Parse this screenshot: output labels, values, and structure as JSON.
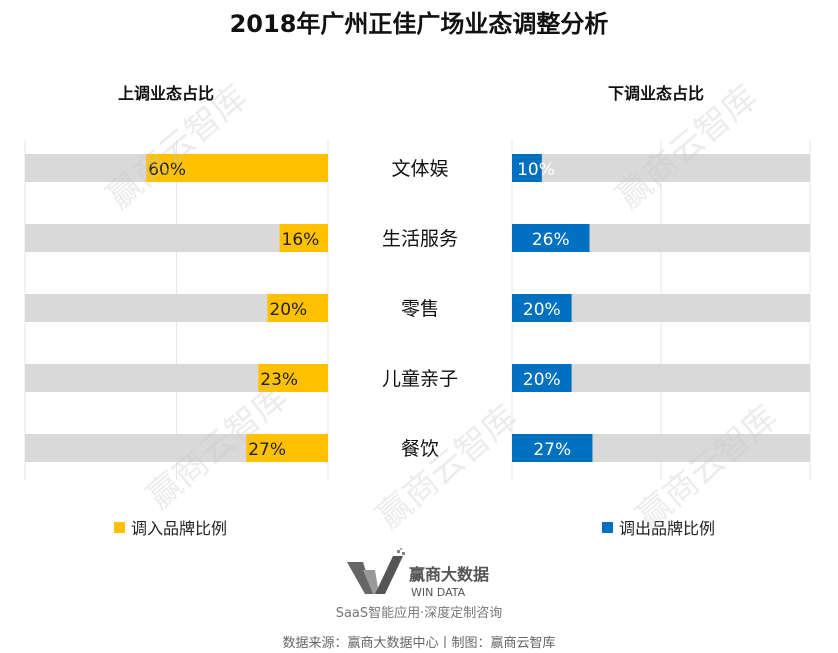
{
  "chart_data": {
    "type": "bar",
    "title": "2018年广州正佳广场业态调整分析",
    "categories": [
      "文体娱",
      "生活服务",
      "零售",
      "儿童亲子",
      "餐饮"
    ],
    "xlim": [
      0,
      100
    ],
    "grid": true,
    "series": [
      {
        "name": "调入品牌比例",
        "panel_title": "上调业态占比",
        "values": [
          60,
          16,
          20,
          23,
          27
        ],
        "labels": [
          "60%",
          "16%",
          "20%",
          "23%",
          "27%"
        ],
        "color": "#FFC000",
        "direction": "left"
      },
      {
        "name": "调出品牌比例",
        "panel_title": "下调业态占比",
        "values": [
          10,
          26,
          20,
          20,
          27
        ],
        "labels": [
          "10%",
          "26%",
          "20%",
          "20%",
          "27%"
        ],
        "color": "#0070C0",
        "direction": "right"
      }
    ],
    "track_color": "#D9D9D9",
    "legend_placement": "bottom"
  },
  "logo": {
    "name_cn": "赢商大数据",
    "name_en": "WIN DATA"
  },
  "slogan": "SaaS智能应用·深度定制咨询",
  "source": "数据来源：赢商大数据中心丨制图：赢商云智库",
  "watermark": "赢商云智库"
}
